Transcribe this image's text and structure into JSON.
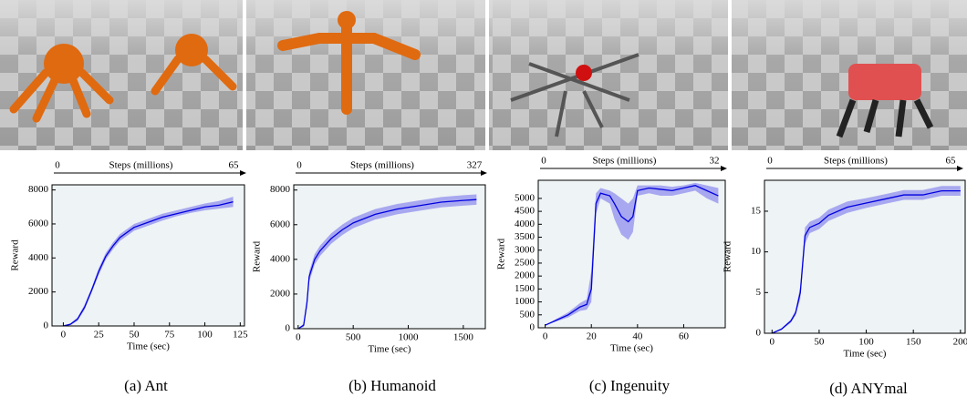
{
  "chart_data": [
    {
      "type": "line",
      "caption": "(a) Ant",
      "xlabel": "Time (sec)",
      "ylabel": "Reward",
      "top_axis_label": "Steps (millions)",
      "top_axis_ticks": [
        0,
        65
      ],
      "xlim": [
        -8,
        128
      ],
      "ylim": [
        0,
        8300
      ],
      "xticks": [
        0,
        25,
        50,
        75,
        100,
        125
      ],
      "yticks": [
        0,
        2000,
        4000,
        6000,
        8000
      ],
      "color": "#0000e0",
      "band_color": "#a8a8f0",
      "x": [
        0,
        5,
        10,
        15,
        20,
        25,
        30,
        35,
        40,
        50,
        60,
        70,
        80,
        90,
        100,
        110,
        120
      ],
      "values": [
        0,
        100,
        400,
        1100,
        2100,
        3200,
        4100,
        4700,
        5200,
        5800,
        6100,
        6400,
        6600,
        6800,
        7000,
        7100,
        7300
      ],
      "lower": [
        0,
        50,
        300,
        950,
        1950,
        3000,
        3900,
        4500,
        5000,
        5600,
        5900,
        6200,
        6450,
        6650,
        6800,
        6900,
        7000
      ],
      "upper": [
        0,
        150,
        500,
        1250,
        2250,
        3400,
        4300,
        4900,
        5400,
        6000,
        6300,
        6600,
        6800,
        7000,
        7200,
        7350,
        7600
      ]
    },
    {
      "type": "line",
      "caption": "(b) Humanoid",
      "xlabel": "Time (sec)",
      "ylabel": "Reward",
      "top_axis_label": "Steps (millions)",
      "top_axis_ticks": [
        0,
        327
      ],
      "xlim": [
        -40,
        1700
      ],
      "ylim": [
        0,
        8300
      ],
      "xticks": [
        0,
        500,
        1000,
        1500
      ],
      "yticks": [
        0,
        2000,
        4000,
        6000,
        8000
      ],
      "color": "#0000e0",
      "band_color": "#a8a8f0",
      "x": [
        0,
        50,
        80,
        100,
        150,
        200,
        300,
        400,
        500,
        700,
        900,
        1100,
        1300,
        1500,
        1620
      ],
      "values": [
        0,
        200,
        1500,
        3000,
        4000,
        4500,
        5200,
        5700,
        6100,
        6600,
        6900,
        7100,
        7300,
        7400,
        7450
      ],
      "lower": [
        0,
        100,
        1200,
        2700,
        3700,
        4200,
        4900,
        5400,
        5800,
        6300,
        6600,
        6800,
        7000,
        7100,
        7150
      ],
      "upper": [
        0,
        300,
        1800,
        3300,
        4300,
        4800,
        5500,
        6000,
        6400,
        6900,
        7200,
        7400,
        7600,
        7700,
        7750
      ]
    },
    {
      "type": "line",
      "caption": "(c) Ingenuity",
      "xlabel": "Time (sec)",
      "ylabel": "Reward",
      "top_axis_label": "Steps (millions)",
      "top_axis_ticks": [
        0,
        32
      ],
      "xlim": [
        -3,
        78
      ],
      "ylim": [
        0,
        5700
      ],
      "xticks": [
        0,
        20,
        40,
        60
      ],
      "yticks": [
        0,
        500,
        1000,
        1500,
        2000,
        2500,
        3000,
        3500,
        4000,
        4500,
        5000
      ],
      "color": "#0000e0",
      "band_color": "#a8a8f0",
      "x": [
        0,
        5,
        10,
        15,
        18,
        20,
        22,
        24,
        28,
        30,
        33,
        36,
        38,
        40,
        45,
        50,
        55,
        60,
        65,
        70,
        75
      ],
      "values": [
        100,
        300,
        500,
        800,
        900,
        1500,
        4800,
        5200,
        5100,
        4800,
        4300,
        4100,
        4300,
        5300,
        5400,
        5350,
        5300,
        5400,
        5500,
        5300,
        5100
      ],
      "lower": [
        100,
        250,
        400,
        650,
        700,
        1000,
        4400,
        5000,
        4800,
        4200,
        3600,
        3400,
        3700,
        5100,
        5200,
        5100,
        5100,
        5200,
        5300,
        5000,
        4800
      ],
      "upper": [
        100,
        350,
        600,
        950,
        1100,
        2200,
        5200,
        5400,
        5300,
        5200,
        5000,
        4800,
        5000,
        5500,
        5500,
        5500,
        5450,
        5500,
        5600,
        5500,
        5400
      ]
    },
    {
      "type": "line",
      "caption": "(d) ANYmal",
      "xlabel": "Time (sec)",
      "ylabel": "Reward",
      "top_axis_label": "Steps (millions)",
      "top_axis_ticks": [
        0,
        65
      ],
      "xlim": [
        -8,
        205
      ],
      "ylim": [
        0,
        18.8
      ],
      "xticks": [
        0,
        50,
        100,
        150,
        200
      ],
      "yticks": [
        0,
        5,
        10,
        15
      ],
      "color": "#0000e0",
      "band_color": "#a8a8f0",
      "x": [
        0,
        10,
        20,
        25,
        30,
        35,
        40,
        50,
        60,
        80,
        100,
        120,
        140,
        160,
        180,
        200
      ],
      "values": [
        0,
        0.5,
        1.5,
        2.5,
        5,
        12,
        13,
        13.5,
        14.5,
        15.5,
        16,
        16.5,
        17,
        17,
        17.5,
        17.5
      ],
      "lower": [
        0,
        0.4,
        1.3,
        2.2,
        4.2,
        11,
        12.3,
        12.8,
        13.8,
        14.8,
        15.4,
        15.9,
        16.4,
        16.4,
        16.9,
        16.9
      ],
      "upper": [
        0,
        0.6,
        1.7,
        2.8,
        5.8,
        13,
        13.7,
        14.2,
        15.2,
        16.2,
        16.6,
        17.1,
        17.6,
        17.6,
        18.1,
        18.1
      ]
    }
  ]
}
